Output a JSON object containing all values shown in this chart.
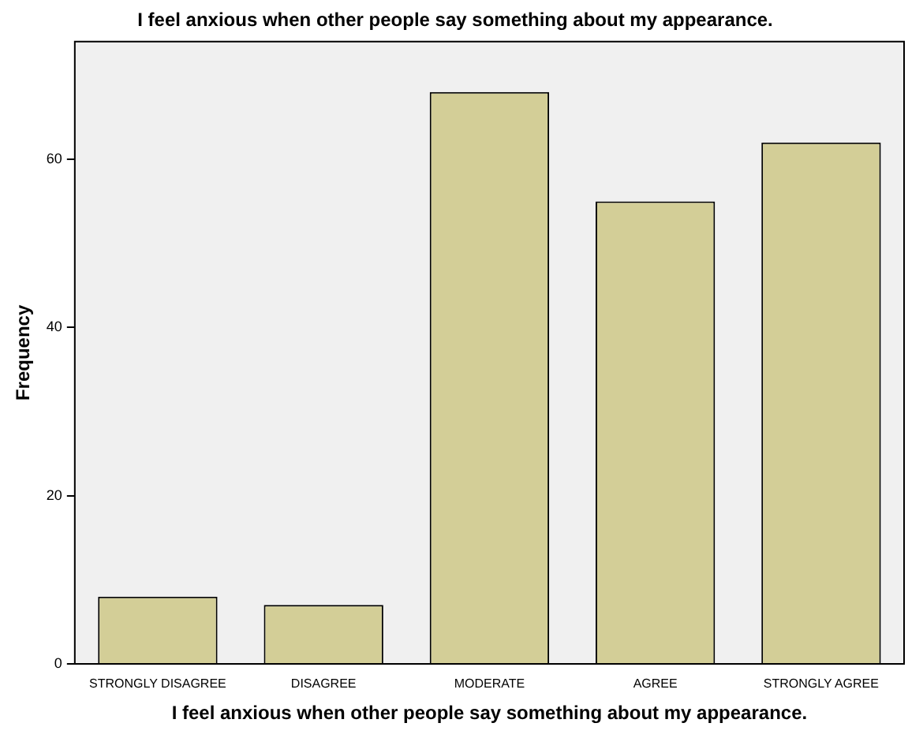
{
  "chart_data": {
    "type": "bar",
    "title": "I feel anxious when other people say something about my appearance.",
    "xlabel": "I feel anxious when other people say something about my appearance.",
    "ylabel": "Frequency",
    "categories": [
      "STRONGLY DISAGREE",
      "DISAGREE",
      "MODERATE",
      "AGREE",
      "STRONGLY AGREE"
    ],
    "values": [
      8,
      7,
      68,
      55,
      62
    ],
    "color": "#d3ce97",
    "ylim": [
      0,
      74
    ],
    "yticks": [
      0,
      20,
      40,
      60
    ],
    "grid": false,
    "legend": false
  }
}
